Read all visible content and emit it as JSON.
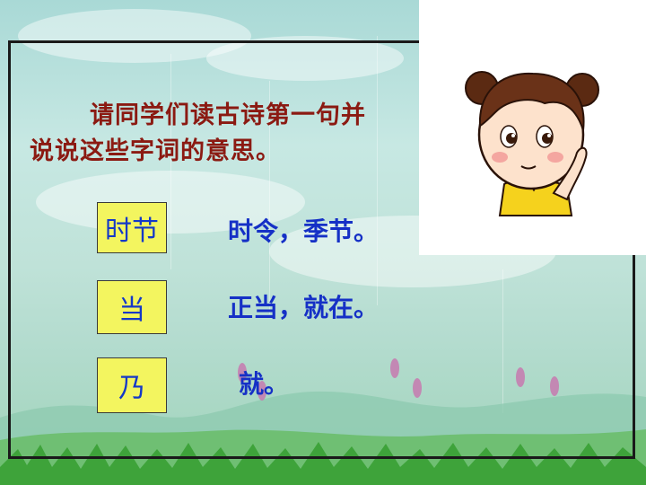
{
  "slide": {
    "instruction_line1": "请同学们读古诗第一句并",
    "instruction_line2": "说说这些字词的意思。",
    "terms": [
      {
        "term": "时节",
        "meaning": "时令，季节。"
      },
      {
        "term": "当",
        "meaning": "正当，就在。"
      },
      {
        "term": "乃",
        "meaning": "就。"
      }
    ]
  },
  "illustration": {
    "icon": "cartoon-girl-thinking"
  },
  "colors": {
    "instruction_text": "#8b1a12",
    "term_box_fill": "#f3f55f",
    "term_text": "#1438c8",
    "meaning_text": "#1530c6",
    "frame_border": "#1a1a1a"
  }
}
